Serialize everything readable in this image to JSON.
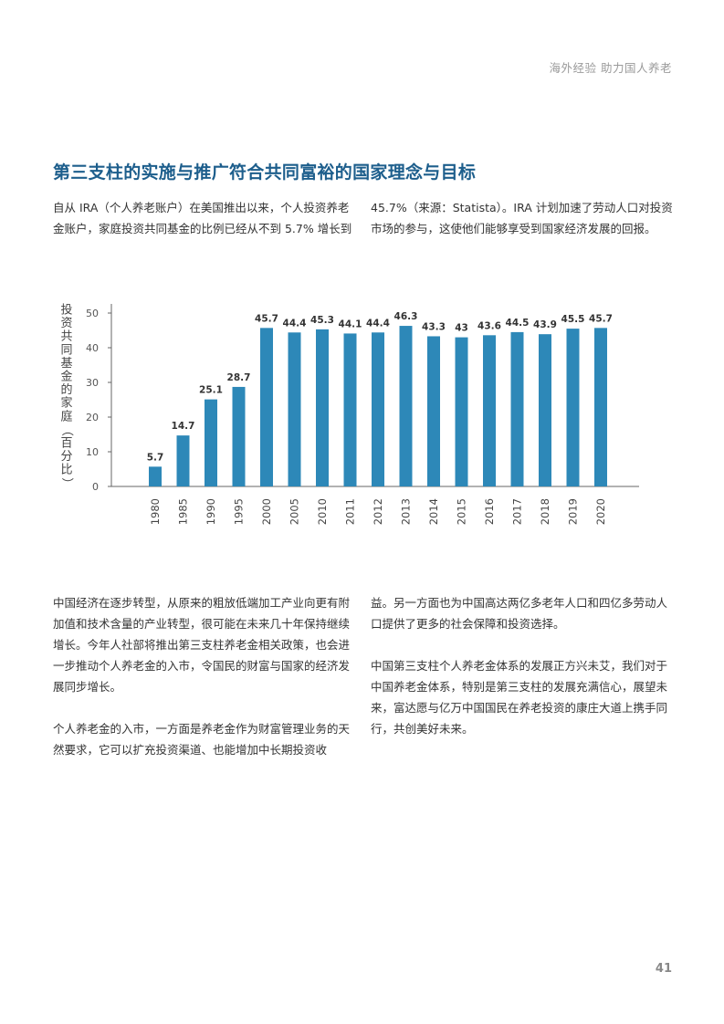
{
  "header": {
    "text": "海外经验  助力国人养老"
  },
  "title": "第三支柱的实施与推广符合共同富裕的国家理念与目标",
  "intro": {
    "left": "自从 IRA（个人养老账户）在美国推出以来，个人投资养老金账户，家庭投资共同基金的比例已经从不到 5.7% 增长到",
    "right": "45.7%（来源：Statista）。IRA 计划加速了劳动人口对投资市场的参与，这使他们能够享受到国家经济发展的回报。"
  },
  "chart_data": {
    "type": "bar",
    "ylabel": "投资共同基金的家庭（百分比）",
    "categories": [
      "1980",
      "1985",
      "1990",
      "1995",
      "2000",
      "2005",
      "2010",
      "2011",
      "2012",
      "2013",
      "2014",
      "2015",
      "2016",
      "2017",
      "2018",
      "2019",
      "2020"
    ],
    "values": [
      5.7,
      14.7,
      25.1,
      28.7,
      45.7,
      44.4,
      45.3,
      44.1,
      44.4,
      46.3,
      43.3,
      43,
      43.6,
      44.5,
      43.9,
      45.5,
      45.7
    ],
    "value_labels": [
      "5.7",
      "14.7",
      "25.1",
      "28.7",
      "45.7",
      "44.4",
      "45.3",
      "44.1",
      "44.4",
      "46.3",
      "43.3",
      "43",
      "43.6",
      "44.5",
      "43.9",
      "45.5",
      "45.7"
    ],
    "ylim": [
      0,
      50
    ],
    "yticks": [
      "0",
      "10",
      "20",
      "30",
      "40",
      "50"
    ],
    "grid": false,
    "bar_color": "#2d88b8"
  },
  "body": {
    "left_p1": "中国经济在逐步转型，从原来的粗放低端加工产业向更有附加值和技术含量的产业转型，很可能在未来几十年保持继续增长。今年人社部将推出第三支柱养老金相关政策，也会进一步推动个人养老金的入市，令国民的财富与国家的经济发展同步增长。",
    "left_p2": "个人养老金的入市，一方面是养老金作为财富管理业务的天然要求，它可以扩充投资渠道、也能增加中长期投资收",
    "right_p1": "益。另一方面也为中国高达两亿多老年人口和四亿多劳动人口提供了更多的社会保障和投资选择。",
    "right_p2": "中国第三支柱个人养老金体系的发展正方兴未艾，我们对于中国养老金体系，特别是第三支柱的发展充满信心，展望未来，富达愿与亿万中国国民在养老投资的康庄大道上携手同行，共创美好未来。"
  },
  "page_number": "41"
}
